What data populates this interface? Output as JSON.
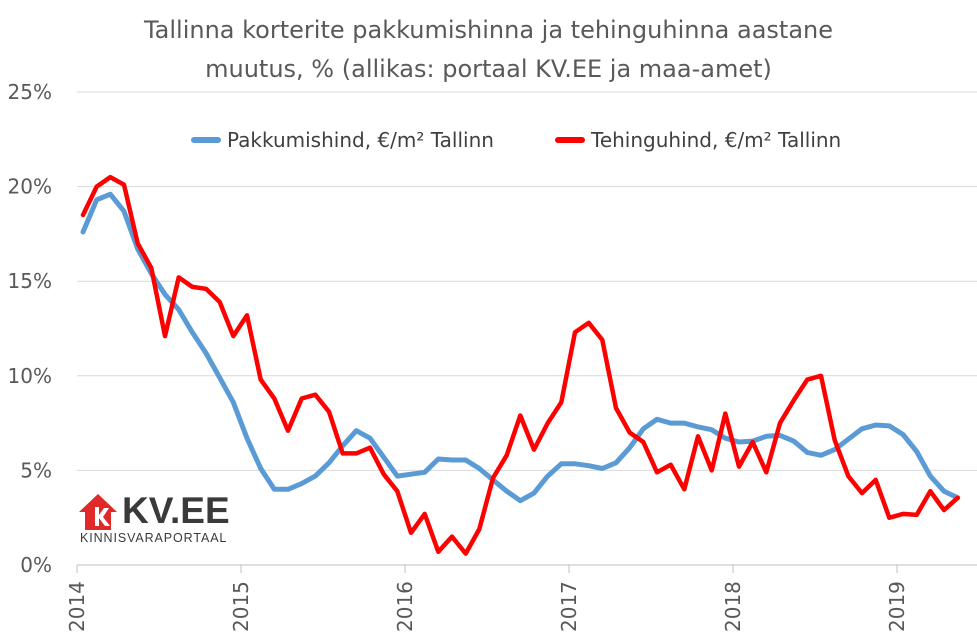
{
  "title_line1": "Tallinna korterite pakkumishinna ja tehinguhinna aastane",
  "title_line2": "muutus, % (allikas: portaal KV.EE ja maa-amet)",
  "logo": {
    "name": "KV.EE",
    "tagline": "KINNISVARAPORTAAL",
    "color": "#e02a2a"
  },
  "chart_data": {
    "type": "line",
    "title": "Tallinna korterite pakkumishinna ja tehinguhinna aastane muutus, % (allikas: portaal KV.EE ja maa-amet)",
    "xlabel": "",
    "ylabel": "",
    "ylim": [
      0,
      25
    ],
    "yticks": [
      "0%",
      "5%",
      "10%",
      "15%",
      "20%",
      "25%"
    ],
    "xticks": [
      "2014",
      "2015",
      "2016",
      "2017",
      "2018",
      "2019"
    ],
    "x_start": "2014-01",
    "x_end": "2019-06",
    "grid": "horizontal",
    "legend_position": "top",
    "series": [
      {
        "name": "Pakkumishind, €/m² Tallinn",
        "color": "#5b9bd5",
        "values": [
          17.6,
          19.3,
          19.6,
          18.7,
          16.7,
          15.4,
          14.3,
          13.5,
          12.3,
          11.2,
          9.9,
          8.6,
          6.7,
          5.1,
          4.0,
          4.0,
          4.3,
          4.7,
          5.4,
          6.3,
          7.1,
          6.7,
          5.7,
          4.7,
          4.8,
          4.9,
          5.6,
          5.55,
          5.55,
          5.1,
          4.5,
          3.9,
          3.4,
          3.8,
          4.7,
          5.35,
          5.35,
          5.25,
          5.1,
          5.4,
          6.2,
          7.2,
          7.7,
          7.5,
          7.5,
          7.3,
          7.15,
          6.7,
          6.5,
          6.55,
          6.8,
          6.85,
          6.55,
          5.95,
          5.8,
          6.1,
          6.65,
          7.2,
          7.4,
          7.35,
          6.9,
          6.0,
          4.7,
          3.9,
          3.55
        ]
      },
      {
        "name": "Tehinguhind, €/m² Tallinn",
        "color": "#ff0000",
        "values": [
          18.5,
          20.0,
          20.5,
          20.1,
          17.0,
          15.7,
          12.1,
          15.2,
          14.7,
          14.6,
          13.9,
          12.1,
          13.2,
          9.8,
          8.8,
          7.1,
          8.8,
          9.0,
          8.1,
          5.9,
          5.9,
          6.2,
          4.8,
          3.9,
          1.7,
          2.7,
          0.7,
          1.5,
          0.6,
          1.9,
          4.6,
          5.8,
          7.9,
          6.1,
          7.5,
          8.6,
          12.3,
          12.8,
          11.9,
          8.3,
          7.0,
          6.5,
          4.9,
          5.3,
          4.0,
          6.8,
          5.0,
          8.0,
          5.2,
          6.5,
          4.9,
          7.5,
          8.7,
          9.8,
          10.0,
          6.6,
          4.7,
          3.8,
          4.5,
          2.5,
          2.7,
          2.65,
          3.9,
          2.9,
          3.55
        ]
      }
    ]
  }
}
